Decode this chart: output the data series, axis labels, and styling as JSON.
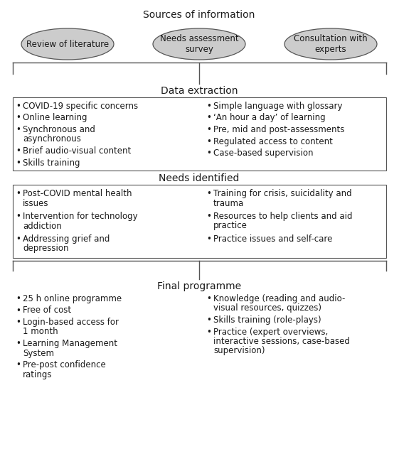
{
  "title_sources": "Sources of information",
  "ellipses": [
    "Review of literature",
    "Needs assessment\nsurvey",
    "Consultation with\nexperts"
  ],
  "section_data_extraction": "Data extraction",
  "data_extraction_left": [
    "COVID-19 specific concerns",
    "Online learning",
    "Synchronous and\nasynchronous",
    "Brief audio-visual content",
    "Skills training"
  ],
  "data_extraction_right": [
    "Simple language with glossary",
    "‘An hour a day’ of learning",
    "Pre, mid and post-assessments",
    "Regulated access to content",
    "Case-based supervision"
  ],
  "section_needs_identified": "Needs identified",
  "needs_identified_left": [
    "Post-COVID mental health\nissues",
    "Intervention for technology\naddiction",
    "Addressing grief and\ndepression"
  ],
  "needs_identified_right": [
    "Training for crisis, suicidality and\ntrauma",
    "Resources to help clients and aid\npractice",
    "Practice issues and self-care"
  ],
  "section_final_programme": "Final programme",
  "final_programme_left": [
    "25 h online programme",
    "Free of cost",
    "Login-based access for\n1 month",
    "Learning Management\nSystem",
    "Pre-post confidence\nratings"
  ],
  "final_programme_right": [
    "Knowledge (reading and audio-\nvisual resources, quizzes)",
    "Skills training (role-plays)",
    "Practice (expert overviews,\ninteractive sessions, case-based\nsupervision)"
  ],
  "bg_color": "#ffffff",
  "text_color": "#1a1a1a",
  "ellipse_fill": "#cccccc",
  "box_edge_color": "#555555",
  "font_size": 8.5,
  "title_font_size": 10.0,
  "section_font_size": 10.0
}
